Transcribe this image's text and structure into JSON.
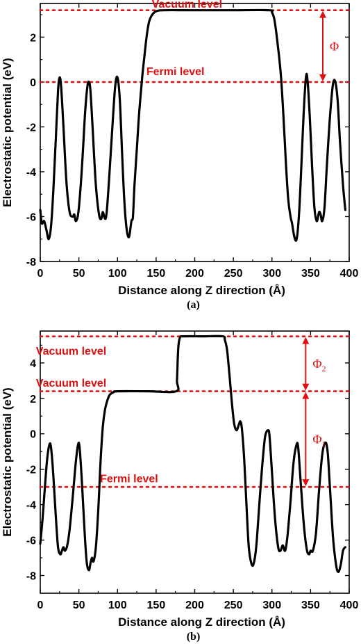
{
  "colors": {
    "curve": "#000000",
    "reference": "#dd1111",
    "axis": "#000000"
  },
  "chart_data": [
    {
      "type": "line",
      "panel_label": "(a)",
      "xlabel": "Distance along Z direction (Å)",
      "ylabel": "Electrostatic potential (eV)",
      "xlim": [
        0,
        400
      ],
      "ylim": [
        -8,
        3.5
      ],
      "xticks": [
        0,
        50,
        100,
        150,
        200,
        250,
        300,
        350,
        400
      ],
      "yticks": [
        -8,
        -6,
        -4,
        -2,
        0,
        2
      ],
      "grid": false,
      "series": [
        {
          "points": [
            [
              0,
              -5.7
            ],
            [
              2,
              -6.3
            ],
            [
              5,
              -6.2
            ],
            [
              8,
              -6.6
            ],
            [
              11,
              -7.0
            ],
            [
              14,
              -6.4
            ],
            [
              17,
              -4.8
            ],
            [
              20,
              -2.6
            ],
            [
              23,
              -0.4
            ],
            [
              25,
              0.2
            ],
            [
              27,
              -0.2
            ],
            [
              30,
              -2.0
            ],
            [
              34,
              -4.5
            ],
            [
              38,
              -5.8
            ],
            [
              42,
              -6.0
            ],
            [
              44,
              -5.9
            ],
            [
              46,
              -6.2
            ],
            [
              49,
              -5.9
            ],
            [
              52,
              -4.8
            ],
            [
              55,
              -3.2
            ],
            [
              58,
              -1.4
            ],
            [
              61,
              -0.2
            ],
            [
              63,
              0.0
            ],
            [
              65,
              -0.4
            ],
            [
              68,
              -2.2
            ],
            [
              72,
              -4.6
            ],
            [
              76,
              -5.9
            ],
            [
              79,
              -6.1
            ],
            [
              81,
              -5.8
            ],
            [
              84,
              -6.1
            ],
            [
              86,
              -5.8
            ],
            [
              89,
              -4.4
            ],
            [
              93,
              -2.2
            ],
            [
              97,
              -0.2
            ],
            [
              100,
              0.2
            ],
            [
              103,
              -0.8
            ],
            [
              106,
              -3.2
            ],
            [
              109,
              -5.4
            ],
            [
              112,
              -6.6
            ],
            [
              115,
              -6.9
            ],
            [
              118,
              -6.2
            ],
            [
              120,
              -6.0
            ],
            [
              122,
              -4.6
            ],
            [
              125,
              -3.0
            ],
            [
              128,
              -1.4
            ],
            [
              132,
              0.2
            ],
            [
              135,
              1.2
            ],
            [
              138,
              2.1
            ],
            [
              141,
              2.7
            ],
            [
              145,
              3.0
            ],
            [
              150,
              3.15
            ],
            [
              160,
              3.2
            ],
            [
              200,
              3.2
            ],
            [
              250,
              3.2
            ],
            [
              296,
              3.2
            ],
            [
              300,
              3.1
            ],
            [
              303,
              2.8
            ],
            [
              306,
              2.1
            ],
            [
              309,
              1.2
            ],
            [
              312,
              0.1
            ],
            [
              315,
              -1.6
            ],
            [
              318,
              -3.6
            ],
            [
              321,
              -5.2
            ],
            [
              324,
              -6.0
            ],
            [
              326,
              -6.3
            ],
            [
              329,
              -6.9
            ],
            [
              332,
              -7.0
            ],
            [
              335,
              -5.9
            ],
            [
              338,
              -3.8
            ],
            [
              341,
              -1.4
            ],
            [
              344,
              0.2
            ],
            [
              346,
              0.1
            ],
            [
              349,
              -1.6
            ],
            [
              352,
              -3.8
            ],
            [
              355,
              -5.6
            ],
            [
              358,
              -6.2
            ],
            [
              361,
              -5.8
            ],
            [
              363,
              -5.9
            ],
            [
              365,
              -6.2
            ],
            [
              368,
              -5.6
            ],
            [
              371,
              -3.8
            ],
            [
              375,
              -1.6
            ],
            [
              379,
              -0.1
            ],
            [
              382,
              0.0
            ],
            [
              385,
              -0.8
            ],
            [
              388,
              -2.6
            ],
            [
              392,
              -4.6
            ],
            [
              395,
              -5.7
            ]
          ]
        }
      ],
      "reference_lines": [
        {
          "label": "Vacuum level",
          "y": 3.2,
          "label_x": 190,
          "label_y": 3.5
        },
        {
          "label": "Fermi level",
          "y": 0.0,
          "label_x": 175,
          "label_y": 0.5
        }
      ],
      "annotations": [
        {
          "text": "Φ",
          "x": 400,
          "y_from": 3.2,
          "y_to": 0.0
        }
      ]
    },
    {
      "type": "line",
      "panel_label": "(b)",
      "xlabel": "Distance along Z direction (Å)",
      "ylabel": "Electrostatic potential (eV)",
      "xlim": [
        0,
        400
      ],
      "ylim": [
        -9,
        5.8
      ],
      "xticks": [
        0,
        50,
        100,
        150,
        200,
        250,
        300,
        350,
        400
      ],
      "yticks": [
        -8,
        -6,
        -4,
        -2,
        0,
        2,
        4
      ],
      "grid": false,
      "series": [
        {
          "points": [
            [
              0,
              -6.2
            ],
            [
              3,
              -4.8
            ],
            [
              6,
              -3.0
            ],
            [
              9,
              -1.4
            ],
            [
              12,
              -0.6
            ],
            [
              14,
              -0.8
            ],
            [
              17,
              -2.4
            ],
            [
              20,
              -4.6
            ],
            [
              23,
              -6.4
            ],
            [
              26,
              -6.8
            ],
            [
              28,
              -6.6
            ],
            [
              30,
              -6.4
            ],
            [
              32,
              -6.6
            ],
            [
              35,
              -6.3
            ],
            [
              38,
              -5.4
            ],
            [
              42,
              -3.6
            ],
            [
              46,
              -1.6
            ],
            [
              49,
              -0.6
            ],
            [
              51,
              -0.8
            ],
            [
              54,
              -2.8
            ],
            [
              57,
              -5.2
            ],
            [
              60,
              -7.2
            ],
            [
              63,
              -7.7
            ],
            [
              65,
              -7.3
            ],
            [
              67,
              -7.0
            ],
            [
              69,
              -7.2
            ],
            [
              72,
              -6.4
            ],
            [
              75,
              -4.4
            ],
            [
              78,
              -1.6
            ],
            [
              81,
              0.4
            ],
            [
              84,
              1.4
            ],
            [
              87,
              1.9
            ],
            [
              90,
              2.2
            ],
            [
              95,
              2.35
            ],
            [
              100,
              2.4
            ],
            [
              140,
              2.4
            ],
            [
              176,
              2.4
            ],
            [
              177,
              3.0
            ],
            [
              178,
              4.2
            ],
            [
              179,
              5.0
            ],
            [
              181,
              5.45
            ],
            [
              186,
              5.5
            ],
            [
              210,
              5.5
            ],
            [
              236,
              5.5
            ],
            [
              239,
              5.3
            ],
            [
              242,
              4.7
            ],
            [
              245,
              3.3
            ],
            [
              248,
              1.8
            ],
            [
              251,
              0.6
            ],
            [
              254,
              0.2
            ],
            [
              257,
              0.5
            ],
            [
              259,
              0.7
            ],
            [
              261,
              0.3
            ],
            [
              264,
              -1.4
            ],
            [
              267,
              -4.0
            ],
            [
              270,
              -6.4
            ],
            [
              274,
              -7.4
            ],
            [
              277,
              -7.2
            ],
            [
              280,
              -6.2
            ],
            [
              283,
              -4.4
            ],
            [
              287,
              -2.0
            ],
            [
              291,
              -0.2
            ],
            [
              295,
              0.2
            ],
            [
              297,
              -0.2
            ],
            [
              300,
              -2.2
            ],
            [
              304,
              -4.8
            ],
            [
              308,
              -6.4
            ],
            [
              311,
              -6.6
            ],
            [
              314,
              -6.3
            ],
            [
              317,
              -6.6
            ],
            [
              320,
              -5.8
            ],
            [
              324,
              -3.8
            ],
            [
              328,
              -1.6
            ],
            [
              332,
              -0.6
            ],
            [
              334,
              -0.8
            ],
            [
              337,
              -2.6
            ],
            [
              341,
              -5.0
            ],
            [
              345,
              -6.5
            ],
            [
              348,
              -6.8
            ],
            [
              350,
              -6.6
            ],
            [
              353,
              -6.6
            ],
            [
              357,
              -5.6
            ],
            [
              361,
              -3.2
            ],
            [
              365,
              -1.2
            ],
            [
              369,
              -0.5
            ],
            [
              372,
              -1.0
            ],
            [
              375,
              -3.0
            ],
            [
              379,
              -5.8
            ],
            [
              383,
              -7.4
            ],
            [
              386,
              -7.8
            ],
            [
              389,
              -7.4
            ],
            [
              392,
              -6.6
            ],
            [
              395,
              -6.4
            ]
          ]
        }
      ],
      "reference_lines": [
        {
          "label": "Vacuum level",
          "y": 5.5,
          "label_x": 40,
          "label_y": 4.7
        },
        {
          "label": "Vacuum level",
          "y": 2.4,
          "label_x": 40,
          "label_y": 2.9
        },
        {
          "label": "Fermi level",
          "y": -3.0,
          "label_x": 115,
          "label_y": -2.5
        }
      ],
      "annotations": [
        {
          "text": "Φ",
          "subscript": "2",
          "x": 385,
          "y_from": 5.5,
          "y_to": 2.4
        },
        {
          "text": "Φ",
          "subscript": "1",
          "x": 385,
          "y_from": 2.4,
          "y_to": -3.0
        }
      ]
    }
  ]
}
